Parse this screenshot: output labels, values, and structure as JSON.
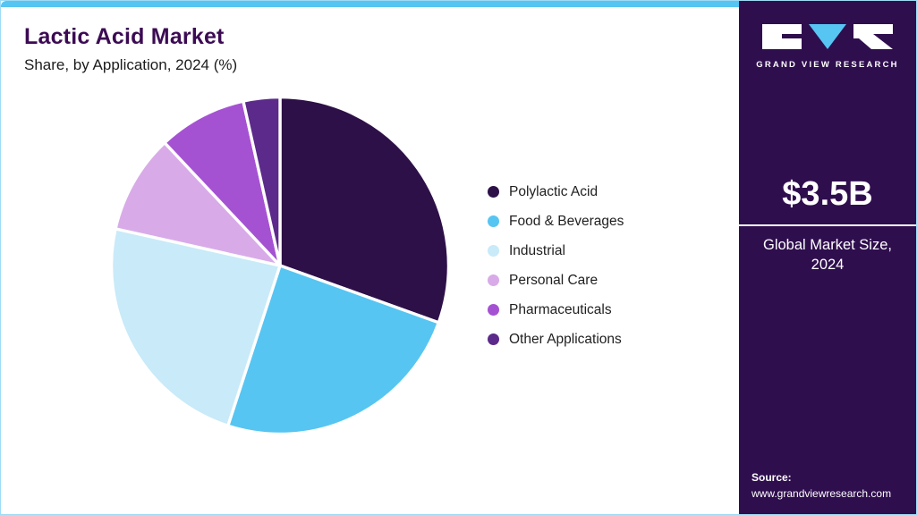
{
  "header": {
    "title": "Lactic Acid Market",
    "subtitle": "Share, by Application, 2024 (%)"
  },
  "chart_data": {
    "type": "pie",
    "title": "Lactic Acid Market Share, by Application, 2024 (%)",
    "categories": [
      "Polylactic Acid",
      "Food & Beverages",
      "Industrial",
      "Personal Care",
      "Pharmaceuticals",
      "Other Applications"
    ],
    "values": [
      30.5,
      24.5,
      23.5,
      9.5,
      8.5,
      3.5
    ],
    "colors": [
      "#2e1048",
      "#56c5f2",
      "#c9eaf8",
      "#d8abe8",
      "#a552d2",
      "#5b2a8a"
    ],
    "start_angle_deg": 0,
    "direction": "clockwise",
    "legend_position": "right",
    "slice_stroke_color": "#ffffff"
  },
  "sidebar": {
    "brand": "GRAND VIEW RESEARCH",
    "market_size_value": "$3.5B",
    "market_size_label": "Global Market Size, 2024",
    "source_label": "Source:",
    "source_url": "www.grandviewresearch.com",
    "accent_color": "#56c5f2",
    "background_color": "#2f0e4e"
  }
}
